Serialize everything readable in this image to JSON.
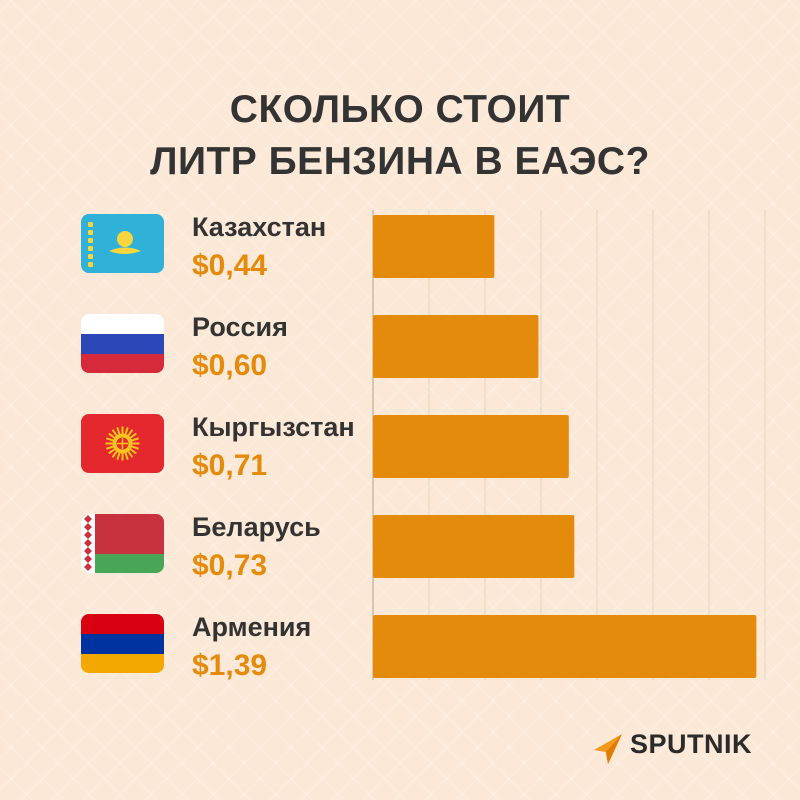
{
  "colors": {
    "bar": "#e48b0c",
    "price": "#e48b0c",
    "text": "#333333",
    "grid": "#e5d3c0"
  },
  "logo": {
    "text": "SPUTNIK",
    "icon": "sputnik-logo-icon"
  },
  "chart_data": {
    "type": "bar",
    "orientation": "horizontal",
    "title_lines": [
      "СКОЛЬКО СТОИТ",
      "ЛИТР БЕНЗИНА В ЕАЭС?"
    ],
    "categories": [
      "Казахстан",
      "Россия",
      "Кыргызстан",
      "Беларусь",
      "Армения"
    ],
    "labels": [
      "$0,44",
      "$0,60",
      "$0,71",
      "$0,73",
      "$1,39"
    ],
    "values": [
      0.44,
      0.6,
      0.71,
      0.73,
      1.39
    ],
    "flags": [
      "kazakhstan-flag-icon",
      "russia-flag-icon",
      "kyrgyzstan-flag-icon",
      "belarus-flag-icon",
      "armenia-flag-icon"
    ],
    "xlim": [
      0,
      1.4
    ],
    "grid": true
  }
}
